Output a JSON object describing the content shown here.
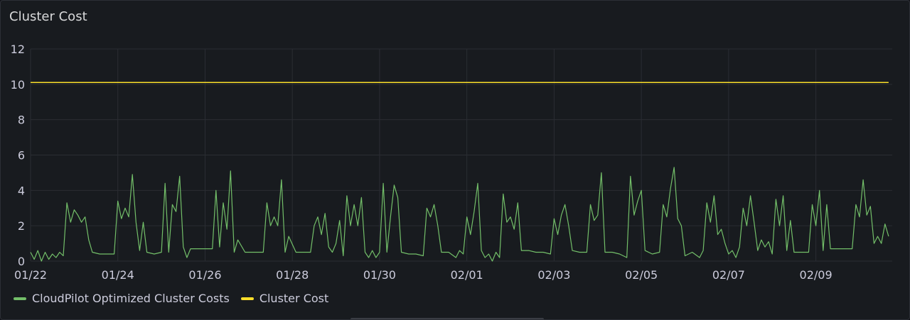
{
  "panel": {
    "title": "Cluster Cost"
  },
  "colors": {
    "optimized": "#73bf69",
    "cluster_cost": "#fade2a",
    "grid": "#2a2d33"
  },
  "chart_data": {
    "type": "line",
    "title": "Cluster Cost",
    "xlabel": "",
    "ylabel": "",
    "ylim": [
      0,
      12
    ],
    "yticks": [
      0,
      2,
      4,
      6,
      8,
      10,
      12
    ],
    "xlim": [
      "2024-01-22T00:00",
      "2024-02-10T18:00"
    ],
    "xticks": [
      {
        "date": "2024-01-22",
        "label": "01/22"
      },
      {
        "date": "2024-01-24",
        "label": "01/24"
      },
      {
        "date": "2024-01-26",
        "label": "01/26"
      },
      {
        "date": "2024-01-28",
        "label": "01/28"
      },
      {
        "date": "2024-01-30",
        "label": "01/30"
      },
      {
        "date": "2024-02-01",
        "label": "02/01"
      },
      {
        "date": "2024-02-03",
        "label": "02/03"
      },
      {
        "date": "2024-02-05",
        "label": "02/05"
      },
      {
        "date": "2024-02-07",
        "label": "02/07"
      },
      {
        "date": "2024-02-09",
        "label": "02/09"
      }
    ],
    "grid": true,
    "legend_position": "bottom-left",
    "series": [
      {
        "name": "CloudPilot Optimized Cluster Costs",
        "color": "#73bf69",
        "points": [
          [
            "2024-01-22T00:00",
            0.5
          ],
          [
            "2024-01-22T02:00",
            0.1
          ],
          [
            "2024-01-22T04:00",
            0.6
          ],
          [
            "2024-01-22T06:00",
            0.0
          ],
          [
            "2024-01-22T08:00",
            0.5
          ],
          [
            "2024-01-22T10:00",
            0.1
          ],
          [
            "2024-01-22T12:00",
            0.4
          ],
          [
            "2024-01-22T14:00",
            0.2
          ],
          [
            "2024-01-22T16:00",
            0.5
          ],
          [
            "2024-01-22T18:00",
            0.3
          ],
          [
            "2024-01-22T20:00",
            3.3
          ],
          [
            "2024-01-22T22:00",
            2.2
          ],
          [
            "2024-01-23T00:00",
            2.9
          ],
          [
            "2024-01-23T02:00",
            2.6
          ],
          [
            "2024-01-23T04:00",
            2.2
          ],
          [
            "2024-01-23T06:00",
            2.5
          ],
          [
            "2024-01-23T08:00",
            1.2
          ],
          [
            "2024-01-23T10:00",
            0.5
          ],
          [
            "2024-01-23T14:00",
            0.4
          ],
          [
            "2024-01-23T18:00",
            0.4
          ],
          [
            "2024-01-23T22:00",
            0.4
          ],
          [
            "2024-01-24T00:00",
            3.4
          ],
          [
            "2024-01-24T02:00",
            2.4
          ],
          [
            "2024-01-24T04:00",
            3.0
          ],
          [
            "2024-01-24T06:00",
            2.5
          ],
          [
            "2024-01-24T08:00",
            4.9
          ],
          [
            "2024-01-24T10:00",
            2.2
          ],
          [
            "2024-01-24T12:00",
            0.6
          ],
          [
            "2024-01-24T14:00",
            2.2
          ],
          [
            "2024-01-24T16:00",
            0.5
          ],
          [
            "2024-01-24T20:00",
            0.4
          ],
          [
            "2024-01-25T00:00",
            0.5
          ],
          [
            "2024-01-25T02:00",
            4.4
          ],
          [
            "2024-01-25T04:00",
            0.5
          ],
          [
            "2024-01-25T06:00",
            3.2
          ],
          [
            "2024-01-25T08:00",
            2.8
          ],
          [
            "2024-01-25T10:00",
            4.8
          ],
          [
            "2024-01-25T12:00",
            0.8
          ],
          [
            "2024-01-25T14:00",
            0.2
          ],
          [
            "2024-01-25T16:00",
            0.7
          ],
          [
            "2024-01-25T20:00",
            0.7
          ],
          [
            "2024-01-26T00:00",
            0.7
          ],
          [
            "2024-01-26T04:00",
            0.7
          ],
          [
            "2024-01-26T06:00",
            4.0
          ],
          [
            "2024-01-26T08:00",
            0.8
          ],
          [
            "2024-01-26T10:00",
            3.3
          ],
          [
            "2024-01-26T12:00",
            1.8
          ],
          [
            "2024-01-26T14:00",
            5.1
          ],
          [
            "2024-01-26T16:00",
            0.5
          ],
          [
            "2024-01-26T18:00",
            1.2
          ],
          [
            "2024-01-26T22:00",
            0.5
          ],
          [
            "2024-01-27T04:00",
            0.5
          ],
          [
            "2024-01-27T08:00",
            0.5
          ],
          [
            "2024-01-27T10:00",
            3.3
          ],
          [
            "2024-01-27T12:00",
            2.0
          ],
          [
            "2024-01-27T14:00",
            2.5
          ],
          [
            "2024-01-27T16:00",
            2.0
          ],
          [
            "2024-01-27T18:00",
            4.6
          ],
          [
            "2024-01-27T20:00",
            0.5
          ],
          [
            "2024-01-27T22:00",
            1.4
          ],
          [
            "2024-01-28T02:00",
            0.5
          ],
          [
            "2024-01-28T06:00",
            0.5
          ],
          [
            "2024-01-28T10:00",
            0.5
          ],
          [
            "2024-01-28T12:00",
            2.0
          ],
          [
            "2024-01-28T14:00",
            2.5
          ],
          [
            "2024-01-28T16:00",
            1.5
          ],
          [
            "2024-01-28T18:00",
            2.7
          ],
          [
            "2024-01-28T20:00",
            0.8
          ],
          [
            "2024-01-28T22:00",
            0.5
          ],
          [
            "2024-01-29T00:00",
            1.0
          ],
          [
            "2024-01-29T02:00",
            2.3
          ],
          [
            "2024-01-29T04:00",
            0.3
          ],
          [
            "2024-01-29T06:00",
            3.7
          ],
          [
            "2024-01-29T08:00",
            2.0
          ],
          [
            "2024-01-29T10:00",
            3.2
          ],
          [
            "2024-01-29T12:00",
            2.0
          ],
          [
            "2024-01-29T14:00",
            3.6
          ],
          [
            "2024-01-29T16:00",
            0.5
          ],
          [
            "2024-01-29T18:00",
            0.2
          ],
          [
            "2024-01-29T20:00",
            0.6
          ],
          [
            "2024-01-29T22:00",
            0.2
          ],
          [
            "2024-01-30T00:00",
            0.5
          ],
          [
            "2024-01-30T02:00",
            4.4
          ],
          [
            "2024-01-30T04:00",
            0.5
          ],
          [
            "2024-01-30T06:00",
            2.5
          ],
          [
            "2024-01-30T08:00",
            4.3
          ],
          [
            "2024-01-30T10:00",
            3.6
          ],
          [
            "2024-01-30T12:00",
            0.5
          ],
          [
            "2024-01-30T16:00",
            0.4
          ],
          [
            "2024-01-30T20:00",
            0.4
          ],
          [
            "2024-01-31T00:00",
            0.3
          ],
          [
            "2024-01-31T02:00",
            3.0
          ],
          [
            "2024-01-31T04:00",
            2.5
          ],
          [
            "2024-01-31T06:00",
            3.2
          ],
          [
            "2024-01-31T08:00",
            2.0
          ],
          [
            "2024-01-31T10:00",
            0.5
          ],
          [
            "2024-01-31T14:00",
            0.5
          ],
          [
            "2024-01-31T18:00",
            0.2
          ],
          [
            "2024-01-31T20:00",
            0.6
          ],
          [
            "2024-01-31T22:00",
            0.4
          ],
          [
            "2024-02-01T00:00",
            2.5
          ],
          [
            "2024-02-01T02:00",
            1.5
          ],
          [
            "2024-02-01T04:00",
            2.8
          ],
          [
            "2024-02-01T06:00",
            4.4
          ],
          [
            "2024-02-01T08:00",
            0.6
          ],
          [
            "2024-02-01T10:00",
            0.2
          ],
          [
            "2024-02-01T12:00",
            0.4
          ],
          [
            "2024-02-01T14:00",
            0.0
          ],
          [
            "2024-02-01T16:00",
            0.5
          ],
          [
            "2024-02-01T18:00",
            0.2
          ],
          [
            "2024-02-01T20:00",
            3.8
          ],
          [
            "2024-02-01T22:00",
            2.2
          ],
          [
            "2024-02-02T00:00",
            2.5
          ],
          [
            "2024-02-02T02:00",
            1.8
          ],
          [
            "2024-02-02T04:00",
            3.3
          ],
          [
            "2024-02-02T06:00",
            0.6
          ],
          [
            "2024-02-02T10:00",
            0.6
          ],
          [
            "2024-02-02T14:00",
            0.5
          ],
          [
            "2024-02-02T18:00",
            0.5
          ],
          [
            "2024-02-02T22:00",
            0.4
          ],
          [
            "2024-02-03T00:00",
            2.4
          ],
          [
            "2024-02-03T02:00",
            1.5
          ],
          [
            "2024-02-03T04:00",
            2.6
          ],
          [
            "2024-02-03T06:00",
            3.2
          ],
          [
            "2024-02-03T08:00",
            2.0
          ],
          [
            "2024-02-03T10:00",
            0.6
          ],
          [
            "2024-02-03T14:00",
            0.5
          ],
          [
            "2024-02-03T18:00",
            0.5
          ],
          [
            "2024-02-03T20:00",
            3.2
          ],
          [
            "2024-02-03T22:00",
            2.3
          ],
          [
            "2024-02-04T00:00",
            2.6
          ],
          [
            "2024-02-04T02:00",
            5.0
          ],
          [
            "2024-02-04T04:00",
            0.5
          ],
          [
            "2024-02-04T08:00",
            0.5
          ],
          [
            "2024-02-04T12:00",
            0.4
          ],
          [
            "2024-02-04T16:00",
            0.2
          ],
          [
            "2024-02-04T18:00",
            4.8
          ],
          [
            "2024-02-04T20:00",
            2.6
          ],
          [
            "2024-02-04T22:00",
            3.4
          ],
          [
            "2024-02-05T00:00",
            4.0
          ],
          [
            "2024-02-05T02:00",
            0.6
          ],
          [
            "2024-02-05T06:00",
            0.4
          ],
          [
            "2024-02-05T10:00",
            0.5
          ],
          [
            "2024-02-05T12:00",
            3.2
          ],
          [
            "2024-02-05T14:00",
            2.5
          ],
          [
            "2024-02-05T16:00",
            4.1
          ],
          [
            "2024-02-05T18:00",
            5.3
          ],
          [
            "2024-02-05T20:00",
            2.4
          ],
          [
            "2024-02-05T22:00",
            2.0
          ],
          [
            "2024-02-06T00:00",
            0.3
          ],
          [
            "2024-02-06T04:00",
            0.5
          ],
          [
            "2024-02-06T08:00",
            0.2
          ],
          [
            "2024-02-06T10:00",
            0.6
          ],
          [
            "2024-02-06T12:00",
            3.3
          ],
          [
            "2024-02-06T14:00",
            2.2
          ],
          [
            "2024-02-06T16:00",
            3.7
          ],
          [
            "2024-02-06T18:00",
            1.5
          ],
          [
            "2024-02-06T20:00",
            1.8
          ],
          [
            "2024-02-06T22:00",
            1.0
          ],
          [
            "2024-02-07T00:00",
            0.4
          ],
          [
            "2024-02-07T02:00",
            0.6
          ],
          [
            "2024-02-07T04:00",
            0.2
          ],
          [
            "2024-02-07T06:00",
            0.8
          ],
          [
            "2024-02-07T08:00",
            3.0
          ],
          [
            "2024-02-07T10:00",
            2.0
          ],
          [
            "2024-02-07T12:00",
            3.7
          ],
          [
            "2024-02-07T14:00",
            2.2
          ],
          [
            "2024-02-07T16:00",
            0.6
          ],
          [
            "2024-02-07T18:00",
            1.2
          ],
          [
            "2024-02-07T20:00",
            0.8
          ],
          [
            "2024-02-07T22:00",
            1.1
          ],
          [
            "2024-02-08T00:00",
            0.4
          ],
          [
            "2024-02-08T02:00",
            3.5
          ],
          [
            "2024-02-08T04:00",
            2.0
          ],
          [
            "2024-02-08T06:00",
            3.7
          ],
          [
            "2024-02-08T08:00",
            0.6
          ],
          [
            "2024-02-08T10:00",
            2.3
          ],
          [
            "2024-02-08T12:00",
            0.5
          ],
          [
            "2024-02-08T16:00",
            0.5
          ],
          [
            "2024-02-08T20:00",
            0.5
          ],
          [
            "2024-02-08T22:00",
            3.2
          ],
          [
            "2024-02-09T00:00",
            2.0
          ],
          [
            "2024-02-09T02:00",
            4.0
          ],
          [
            "2024-02-09T04:00",
            0.6
          ],
          [
            "2024-02-09T06:00",
            3.2
          ],
          [
            "2024-02-09T08:00",
            0.7
          ],
          [
            "2024-02-09T12:00",
            0.7
          ],
          [
            "2024-02-09T16:00",
            0.7
          ],
          [
            "2024-02-09T20:00",
            0.7
          ],
          [
            "2024-02-09T22:00",
            3.2
          ],
          [
            "2024-02-10T00:00",
            2.5
          ],
          [
            "2024-02-10T02:00",
            4.6
          ],
          [
            "2024-02-10T04:00",
            2.6
          ],
          [
            "2024-02-10T06:00",
            3.1
          ],
          [
            "2024-02-10T08:00",
            1.0
          ],
          [
            "2024-02-10T10:00",
            1.4
          ],
          [
            "2024-02-10T12:00",
            1.0
          ],
          [
            "2024-02-10T14:00",
            2.1
          ],
          [
            "2024-02-10T16:00",
            1.4
          ]
        ]
      },
      {
        "name": "Cluster Cost",
        "color": "#fade2a",
        "points": [
          [
            "2024-01-22T00:00",
            10.1
          ],
          [
            "2024-02-10T16:00",
            10.1
          ]
        ]
      }
    ]
  }
}
